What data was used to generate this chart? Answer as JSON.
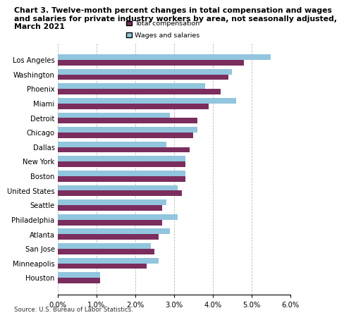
{
  "title_line1": "Chart 3. Twelve-month percent changes in total compensation and wages",
  "title_line2": "and salaries for private industry workers by area, not seasonally adjusted,",
  "title_line3": "March 2021",
  "categories": [
    "Los Angeles",
    "Washington",
    "Phoenix",
    "Miami",
    "Detroit",
    "Chicago",
    "Dallas",
    "New York",
    "Boston",
    "United States",
    "Seattle",
    "Philadelphia",
    "Atlanta",
    "San Jose",
    "Minneapolis",
    "Houston"
  ],
  "total_compensation": [
    4.8,
    4.4,
    4.2,
    3.9,
    3.6,
    3.5,
    3.4,
    3.3,
    3.3,
    3.2,
    2.7,
    2.7,
    2.6,
    2.5,
    2.3,
    1.1
  ],
  "wages_and_salaries": [
    5.5,
    4.5,
    3.8,
    4.6,
    2.9,
    3.6,
    2.8,
    3.3,
    3.3,
    3.1,
    2.8,
    3.1,
    2.9,
    2.4,
    2.6,
    1.1
  ],
  "color_total": "#7B2D5E",
  "color_wages": "#92C5DE",
  "xlim": [
    0,
    6.0
  ],
  "xticks": [
    0.0,
    1.0,
    2.0,
    3.0,
    4.0,
    5.0,
    6.0
  ],
  "xlabel_labels": [
    "0.0%",
    "1.0%",
    "2.0%",
    "3.0%",
    "4.0%",
    "5.0%",
    "6.0%"
  ],
  "source": "Source: U.S. Bureau of Labor Statistics.",
  "legend_total": "Total compensation",
  "legend_wages": "Wages and salaries",
  "background_color": "#FFFFFF"
}
